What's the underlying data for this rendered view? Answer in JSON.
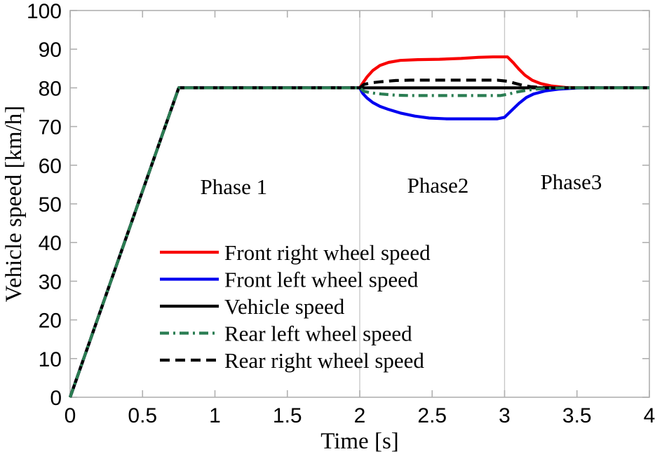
{
  "chart_data": {
    "type": "line",
    "title": "",
    "xlabel": "Time [s]",
    "ylabel": "Vehicle speed [km/h]",
    "xlim": [
      0,
      4
    ],
    "ylim": [
      0,
      100
    ],
    "xticks": [
      0,
      0.5,
      1,
      1.5,
      2,
      2.5,
      3,
      3.5,
      4
    ],
    "xtick_labels": [
      "0",
      "0.5",
      "1",
      "1.5",
      "2",
      "2.5",
      "3",
      "3.5",
      "4"
    ],
    "yticks": [
      0,
      10,
      20,
      30,
      40,
      50,
      60,
      70,
      80,
      90,
      100
    ],
    "ytick_labels": [
      "0",
      "10",
      "20",
      "30",
      "40",
      "50",
      "60",
      "70",
      "80",
      "90",
      "100"
    ],
    "grid_x_values": [
      2,
      3
    ],
    "grid_note": "vertical gridlines only, at phase boundaries t=2 and t=3",
    "legend_position": "inside center-left, no border",
    "frame_color": "#b0b0b0",
    "gridline_color": "#c6c6c6",
    "annotations": [
      {
        "id": "phase1",
        "label": "Phase 1",
        "x": 1.13,
        "y": 54.5
      },
      {
        "id": "phase2",
        "label": "Phase2",
        "x": 2.54,
        "y": 54.9
      },
      {
        "id": "phase3",
        "label": "Phase3",
        "x": 3.46,
        "y": 55.8
      }
    ],
    "series": [
      {
        "id": "front_right",
        "name": "Front right wheel speed",
        "color": "#f80000",
        "style": "solid",
        "points": [
          [
            0,
            0
          ],
          [
            0.75,
            80
          ],
          [
            2,
            80
          ],
          [
            2.02,
            81.2
          ],
          [
            2.05,
            82.8
          ],
          [
            2.09,
            84.5
          ],
          [
            2.14,
            85.8
          ],
          [
            2.2,
            86.6
          ],
          [
            2.28,
            87.1
          ],
          [
            2.4,
            87.3
          ],
          [
            2.55,
            87.4
          ],
          [
            2.7,
            87.6
          ],
          [
            2.82,
            87.9
          ],
          [
            2.92,
            88
          ],
          [
            3.02,
            88
          ],
          [
            3.06,
            86.5
          ],
          [
            3.1,
            84.8
          ],
          [
            3.14,
            83.3
          ],
          [
            3.19,
            82
          ],
          [
            3.25,
            81.1
          ],
          [
            3.32,
            80.5
          ],
          [
            3.42,
            80.1
          ],
          [
            3.55,
            80
          ],
          [
            4,
            80
          ]
        ]
      },
      {
        "id": "front_left",
        "name": "Front left wheel speed",
        "color": "#0000f0",
        "style": "solid",
        "points": [
          [
            0,
            0
          ],
          [
            0.75,
            80
          ],
          [
            2,
            80
          ],
          [
            2.02,
            78.6
          ],
          [
            2.05,
            77.4
          ],
          [
            2.09,
            76.2
          ],
          [
            2.14,
            75.2
          ],
          [
            2.2,
            74.4
          ],
          [
            2.28,
            73.5
          ],
          [
            2.38,
            72.7
          ],
          [
            2.48,
            72.2
          ],
          [
            2.6,
            72
          ],
          [
            2.95,
            72
          ],
          [
            3.0,
            72.4
          ],
          [
            3.05,
            74.2
          ],
          [
            3.1,
            76
          ],
          [
            3.15,
            77.5
          ],
          [
            3.2,
            78.4
          ],
          [
            3.28,
            79.2
          ],
          [
            3.38,
            79.7
          ],
          [
            3.5,
            79.95
          ],
          [
            3.6,
            80
          ],
          [
            4,
            80
          ]
        ]
      },
      {
        "id": "vehicle",
        "name": "Vehicle speed",
        "color": "#000000",
        "style": "solid",
        "points": [
          [
            0,
            0
          ],
          [
            0.75,
            80
          ],
          [
            4,
            80
          ]
        ]
      },
      {
        "id": "rear_left",
        "name": "Rear left wheel speed",
        "color": "#2a7d52",
        "style": "dashdot",
        "points": [
          [
            0,
            0
          ],
          [
            0.75,
            80
          ],
          [
            2,
            80
          ],
          [
            2.03,
            79.1
          ],
          [
            2.08,
            78.7
          ],
          [
            2.15,
            78.4
          ],
          [
            2.25,
            78.1
          ],
          [
            2.35,
            78
          ],
          [
            2.97,
            78
          ],
          [
            3.03,
            78.4
          ],
          [
            3.08,
            78.9
          ],
          [
            3.14,
            79.3
          ],
          [
            3.22,
            79.7
          ],
          [
            3.32,
            79.9
          ],
          [
            3.45,
            80
          ],
          [
            4,
            80
          ]
        ]
      },
      {
        "id": "rear_right",
        "name": "Rear right wheel speed",
        "color": "#000000",
        "style": "dashed",
        "points": [
          [
            0,
            0
          ],
          [
            0.75,
            80
          ],
          [
            2,
            80
          ],
          [
            2.03,
            80.9
          ],
          [
            2.08,
            81.3
          ],
          [
            2.15,
            81.6
          ],
          [
            2.25,
            81.9
          ],
          [
            2.35,
            82
          ],
          [
            2.95,
            82
          ],
          [
            3.02,
            81.7
          ],
          [
            3.07,
            81.2
          ],
          [
            3.12,
            80.7
          ],
          [
            3.18,
            80.3
          ],
          [
            3.28,
            80.05
          ],
          [
            3.4,
            80
          ],
          [
            4,
            80
          ]
        ]
      }
    ],
    "draw_order": [
      "front_right",
      "front_left",
      "rear_right",
      "vehicle",
      "rear_left"
    ]
  }
}
